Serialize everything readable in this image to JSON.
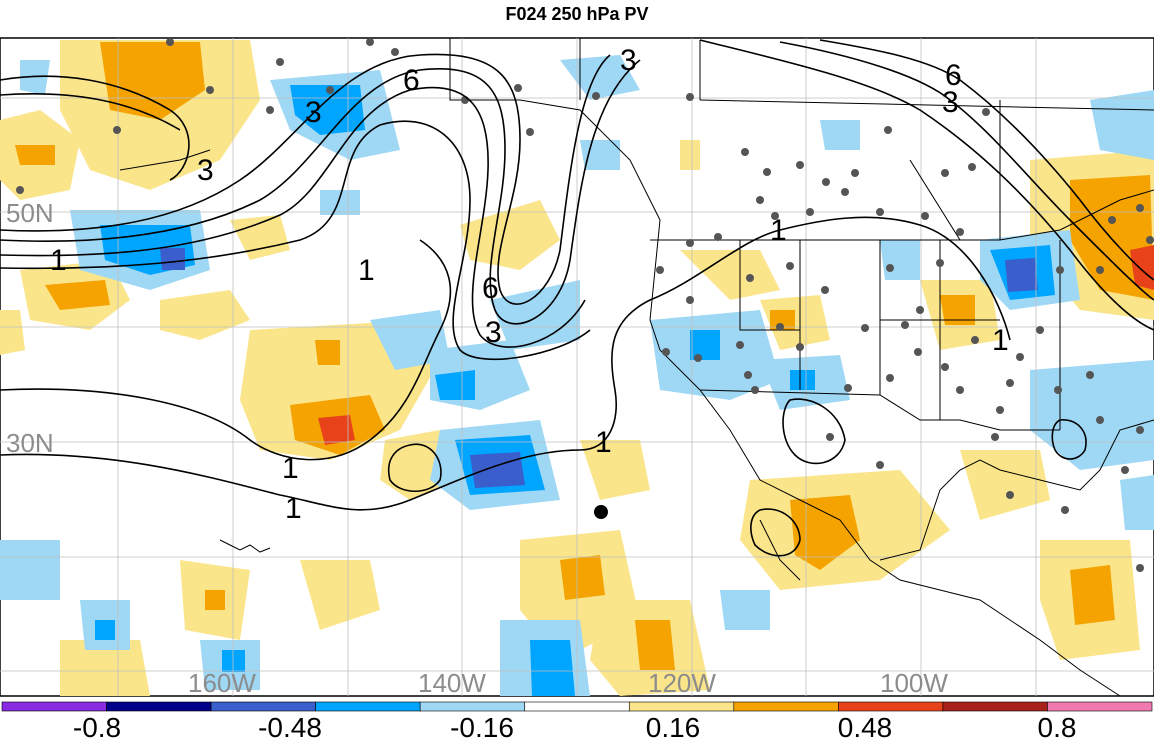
{
  "title": "F024 250 hPa PV",
  "map": {
    "lon_labels": [
      "160W",
      "140W",
      "120W",
      "100W"
    ],
    "lat_labels": [
      "50N",
      "30N"
    ],
    "contour_levels": [
      "1",
      "3",
      "6"
    ],
    "label_color": "#8c8c8c",
    "grid_color": "#bfbfbf"
  },
  "colorbar": {
    "tick_labels": [
      "-0.8",
      "-0.48",
      "-0.16",
      "0.16",
      "0.48",
      "0.8"
    ],
    "colors": [
      "#8a2be2",
      "#00008b",
      "#3a5fcd",
      "#00a5ff",
      "#9fd8f5",
      "#ffffff",
      "#fbe58a",
      "#f4a300",
      "#e8421a",
      "#a8201a",
      "#f07ab0"
    ]
  }
}
